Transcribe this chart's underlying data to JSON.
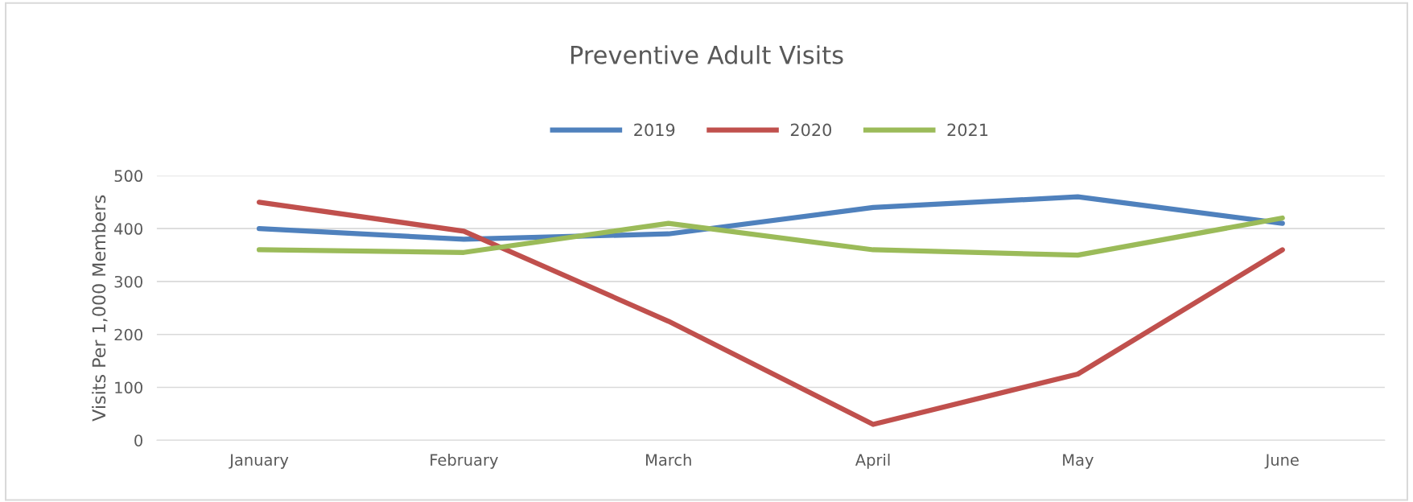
{
  "chart_data": {
    "type": "line",
    "title": "Preventive Adult Visits",
    "ylabel": "Visits Per 1,000 Members",
    "categories": [
      "January",
      "February",
      "March",
      "April",
      "May",
      "June"
    ],
    "series": [
      {
        "name": "2019",
        "color": "#4f81bd",
        "values": [
          400,
          380,
          390,
          440,
          460,
          410
        ]
      },
      {
        "name": "2020",
        "color": "#c0504d",
        "values": [
          450,
          395,
          225,
          30,
          125,
          360
        ]
      },
      {
        "name": "2021",
        "color": "#9bbb59",
        "values": [
          360,
          355,
          410,
          360,
          350,
          420
        ]
      }
    ],
    "ylim": [
      0,
      500
    ],
    "yticks": [
      0,
      100,
      200,
      300,
      400,
      500
    ],
    "grid": "y",
    "legend": "top",
    "marker": "none",
    "line_style": "solid"
  }
}
